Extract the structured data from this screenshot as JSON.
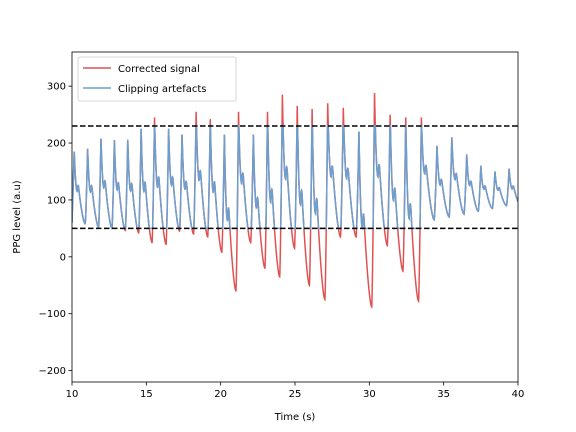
{
  "chart_data": {
    "type": "line",
    "title": "",
    "xlabel": "Time (s)",
    "ylabel": "PPG level (a.u)",
    "xlim": [
      10,
      40
    ],
    "ylim": [
      -220,
      360
    ],
    "xticks": [
      10,
      15,
      20,
      25,
      30,
      35,
      40
    ],
    "yticks": [
      -200,
      -100,
      0,
      100,
      200,
      300
    ],
    "xtick_labels": [
      "10",
      "15",
      "20",
      "25",
      "30",
      "35",
      "40"
    ],
    "ytick_labels": [
      "−200",
      "−100",
      "0",
      "100",
      "200",
      "300"
    ],
    "grid": false,
    "legend_position": "top-left",
    "hlines": [
      {
        "y": 230,
        "style": "dashed",
        "color": "#000000"
      },
      {
        "y": 50,
        "style": "dashed",
        "color": "#000000"
      }
    ],
    "series": [
      {
        "name": "Corrected signal",
        "color": "#e05252",
        "beats": [
          {
            "t": 10.15,
            "peak": 185,
            "trough": 60
          },
          {
            "t": 11.05,
            "peak": 190,
            "trough": 58
          },
          {
            "t": 11.95,
            "peak": 208,
            "trough": 52
          },
          {
            "t": 12.85,
            "peak": 205,
            "trough": 50
          },
          {
            "t": 13.75,
            "peak": 206,
            "trough": 46
          },
          {
            "t": 14.65,
            "peak": 225,
            "trough": 42
          },
          {
            "t": 15.55,
            "peak": 245,
            "trough": 25
          },
          {
            "t": 16.5,
            "peak": 225,
            "trough": 22
          },
          {
            "t": 17.4,
            "peak": 215,
            "trough": 45
          },
          {
            "t": 18.35,
            "peak": 255,
            "trough": 40
          },
          {
            "t": 19.3,
            "peak": 242,
            "trough": 35
          },
          {
            "t": 20.25,
            "peak": 215,
            "trough": 8
          },
          {
            "t": 21.2,
            "peak": 255,
            "trough": -60
          },
          {
            "t": 22.2,
            "peak": 215,
            "trough": 25
          },
          {
            "t": 23.15,
            "peak": 255,
            "trough": -20
          },
          {
            "t": 24.15,
            "peak": 285,
            "trough": -35
          },
          {
            "t": 25.15,
            "peak": 265,
            "trough": 15
          },
          {
            "t": 26.15,
            "peak": 260,
            "trough": -50
          },
          {
            "t": 27.2,
            "peak": 270,
            "trough": -75
          },
          {
            "t": 28.25,
            "peak": 262,
            "trough": 35
          },
          {
            "t": 29.3,
            "peak": 220,
            "trough": 35
          },
          {
            "t": 30.35,
            "peak": 288,
            "trough": -88
          },
          {
            "t": 31.4,
            "peak": 250,
            "trough": 20
          },
          {
            "t": 32.45,
            "peak": 245,
            "trough": -25
          },
          {
            "t": 33.5,
            "peak": 245,
            "trough": -78
          },
          {
            "t": 34.55,
            "peak": 195,
            "trough": 65
          },
          {
            "t": 35.55,
            "peak": 210,
            "trough": 70
          },
          {
            "t": 36.55,
            "peak": 180,
            "trough": 75
          },
          {
            "t": 37.5,
            "peak": 160,
            "trough": 80
          },
          {
            "t": 38.45,
            "peak": 150,
            "trough": 85
          },
          {
            "t": 39.4,
            "peak": 155,
            "trough": 90
          }
        ]
      },
      {
        "name": "Clipping artefacts",
        "color": "#6a9fd0",
        "clip": [
          50,
          230
        ]
      }
    ]
  }
}
